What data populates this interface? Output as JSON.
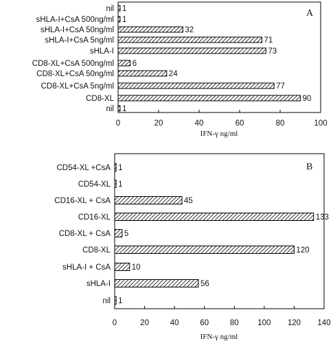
{
  "chart_data": [
    {
      "type": "bar",
      "orientation": "horizontal",
      "panel_label": "A",
      "categories": [
        "nil",
        "CD8-XL",
        "CD8-XL+CsA 5ng/ml",
        "CD8-XL+CsA 50ng/ml",
        "CD8-XL+CsA 500ng/ml",
        "sHLA-I",
        "sHLA-I+CsA 5ng/ml",
        "sHLA-I+CsA 50ng/ml",
        "sHLA-I+CsA 500ng/ml",
        "nil"
      ],
      "values": [
        1,
        90,
        77,
        24,
        6,
        73,
        71,
        32,
        1,
        1
      ],
      "value_labels": [
        "1",
        "90",
        "77",
        "24",
        "6",
        "73",
        "71",
        "32",
        "1",
        "1"
      ],
      "xlabel": "IFN-γ ng/ml",
      "xlim": [
        0,
        100
      ],
      "xticks": [
        0,
        20,
        40,
        60,
        80,
        100
      ],
      "grid": false,
      "bar_fill": "diagonal hatch",
      "colors": {
        "bar_stroke": "#000000",
        "hatch": "#000000",
        "background": "#ffffff"
      }
    },
    {
      "type": "bar",
      "orientation": "horizontal",
      "panel_label": "B",
      "categories": [
        "nil",
        "sHLA-I",
        "sHLA-I + CsA",
        "CD8-XL",
        "CD8-XL + CsA",
        "CD16-XL",
        "CD16-XL + CsA",
        "CD54-XL",
        "CD54-XL +CsA"
      ],
      "values": [
        1,
        56,
        10,
        120,
        5,
        133,
        45,
        1,
        1
      ],
      "value_labels": [
        "1",
        "56",
        "10",
        "120",
        "5",
        "133",
        "45",
        "1",
        "1"
      ],
      "xlabel": "IFN-γ ng/ml",
      "xlim": [
        0,
        140
      ],
      "xticks": [
        0,
        20,
        40,
        60,
        80,
        100,
        120,
        140
      ],
      "grid": false,
      "bar_fill": "diagonal hatch",
      "colors": {
        "bar_stroke": "#000000",
        "hatch": "#000000",
        "background": "#ffffff"
      }
    }
  ]
}
